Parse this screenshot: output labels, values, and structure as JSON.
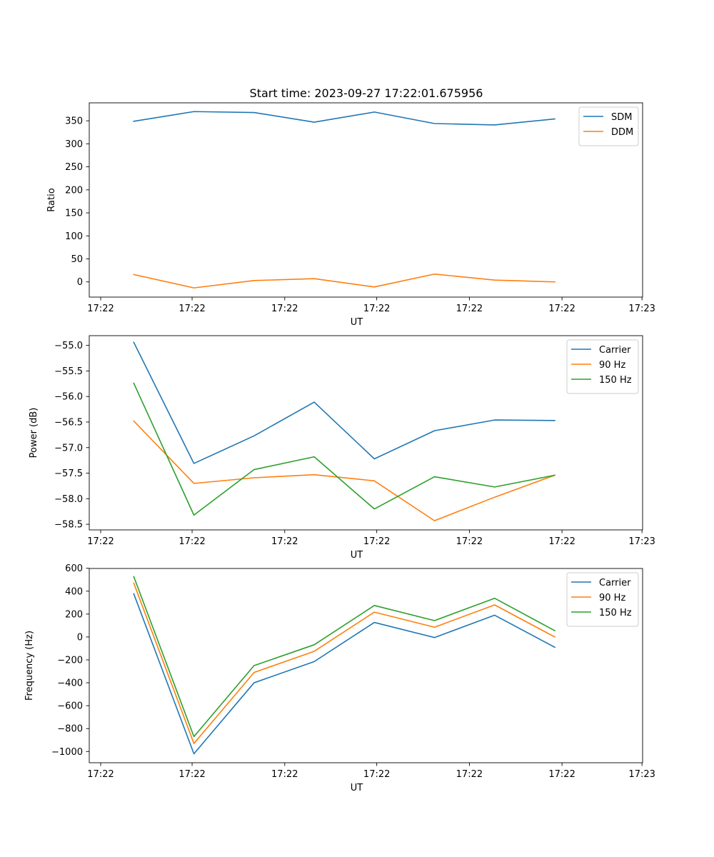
{
  "title": "Start time: 2023-09-27 17:22:01.675956",
  "chart_data": [
    {
      "type": "line",
      "ylabel": "Ratio",
      "xlabel": "UT",
      "x": [
        1,
        2,
        3,
        4,
        5,
        6,
        7,
        8
      ],
      "xlim": [
        0.26,
        9.46
      ],
      "xticks": [
        {
          "x": 0.45,
          "label": "17:22"
        },
        {
          "x": 1.97,
          "label": "17:22"
        },
        {
          "x": 3.51,
          "label": "17:22"
        },
        {
          "x": 5.04,
          "label": "17:22"
        },
        {
          "x": 6.58,
          "label": "17:22"
        },
        {
          "x": 8.12,
          "label": "17:22"
        },
        {
          "x": 9.45,
          "label": "17:23"
        }
      ],
      "ylim": [
        -33,
        389
      ],
      "yticks": [
        0,
        50,
        100,
        150,
        200,
        250,
        300,
        350
      ],
      "ytick_labels": [
        "0",
        "50",
        "100",
        "150",
        "200",
        "250",
        "300",
        "350"
      ],
      "legend_position": "upper-right",
      "series": [
        {
          "name": "SDM",
          "color": "#1f77b4",
          "values": [
            349,
            370,
            368,
            347,
            369,
            344,
            341,
            354
          ]
        },
        {
          "name": "DDM",
          "color": "#ff7f0e",
          "values": [
            16,
            -13,
            3,
            7,
            -11,
            17,
            4,
            0
          ]
        }
      ]
    },
    {
      "type": "line",
      "ylabel": "Power (dB)",
      "xlabel": "UT",
      "x": [
        1,
        2,
        3,
        4,
        5,
        6,
        7,
        8
      ],
      "xlim": [
        0.26,
        9.46
      ],
      "xticks": [
        {
          "x": 0.45,
          "label": "17:22"
        },
        {
          "x": 1.97,
          "label": "17:22"
        },
        {
          "x": 3.51,
          "label": "17:22"
        },
        {
          "x": 5.04,
          "label": "17:22"
        },
        {
          "x": 6.58,
          "label": "17:22"
        },
        {
          "x": 8.12,
          "label": "17:22"
        },
        {
          "x": 9.45,
          "label": "17:23"
        }
      ],
      "ylim": [
        -58.61,
        -54.81
      ],
      "yticks": [
        -58.5,
        -58.0,
        -57.5,
        -57.0,
        -56.5,
        -56.0,
        -55.5,
        -55.0
      ],
      "ytick_labels": [
        "−58.5",
        "−58.0",
        "−57.5",
        "−57.0",
        "−56.5",
        "−56.0",
        "−55.5",
        "−55.0"
      ],
      "legend_position": "upper-right",
      "series": [
        {
          "name": "Carrier",
          "color": "#1f77b4",
          "values": [
            -54.94,
            -57.31,
            -56.77,
            -56.11,
            -57.22,
            -56.67,
            -56.46,
            -56.47
          ]
        },
        {
          "name": "90 Hz",
          "color": "#ff7f0e",
          "values": [
            -56.48,
            -57.7,
            -57.59,
            -57.53,
            -57.65,
            -58.43,
            -57.97,
            -57.54
          ]
        },
        {
          "name": "150 Hz",
          "color": "#2ca02c",
          "values": [
            -55.74,
            -58.32,
            -57.43,
            -57.18,
            -58.2,
            -57.57,
            -57.77,
            -57.54
          ]
        }
      ]
    },
    {
      "type": "line",
      "ylabel": "Frequency (Hz)",
      "xlabel": "UT",
      "x": [
        1,
        2,
        3,
        4,
        5,
        6,
        7,
        8
      ],
      "xlim": [
        0.26,
        9.46
      ],
      "xticks": [
        {
          "x": 0.45,
          "label": "17:22"
        },
        {
          "x": 1.97,
          "label": "17:22"
        },
        {
          "x": 3.51,
          "label": "17:22"
        },
        {
          "x": 5.04,
          "label": "17:22"
        },
        {
          "x": 6.58,
          "label": "17:22"
        },
        {
          "x": 8.12,
          "label": "17:22"
        },
        {
          "x": 9.45,
          "label": "17:23"
        }
      ],
      "ylim": [
        -1098,
        598
      ],
      "yticks": [
        -1000,
        -800,
        -600,
        -400,
        -200,
        0,
        200,
        400,
        600
      ],
      "ytick_labels": [
        "−1000",
        "−800",
        "−600",
        "−400",
        "−200",
        "0",
        "200",
        "400",
        "600"
      ],
      "legend_position": "upper-right",
      "series": [
        {
          "name": "Carrier",
          "color": "#1f77b4",
          "values": [
            377,
            -1020,
            -400,
            -215,
            127,
            -5,
            190,
            -90
          ]
        },
        {
          "name": "90 Hz",
          "color": "#ff7f0e",
          "values": [
            470,
            -930,
            -310,
            -125,
            217,
            85,
            280,
            0
          ]
        },
        {
          "name": "150 Hz",
          "color": "#2ca02c",
          "values": [
            527,
            -870,
            -250,
            -68,
            275,
            143,
            338,
            55
          ]
        }
      ]
    }
  ]
}
